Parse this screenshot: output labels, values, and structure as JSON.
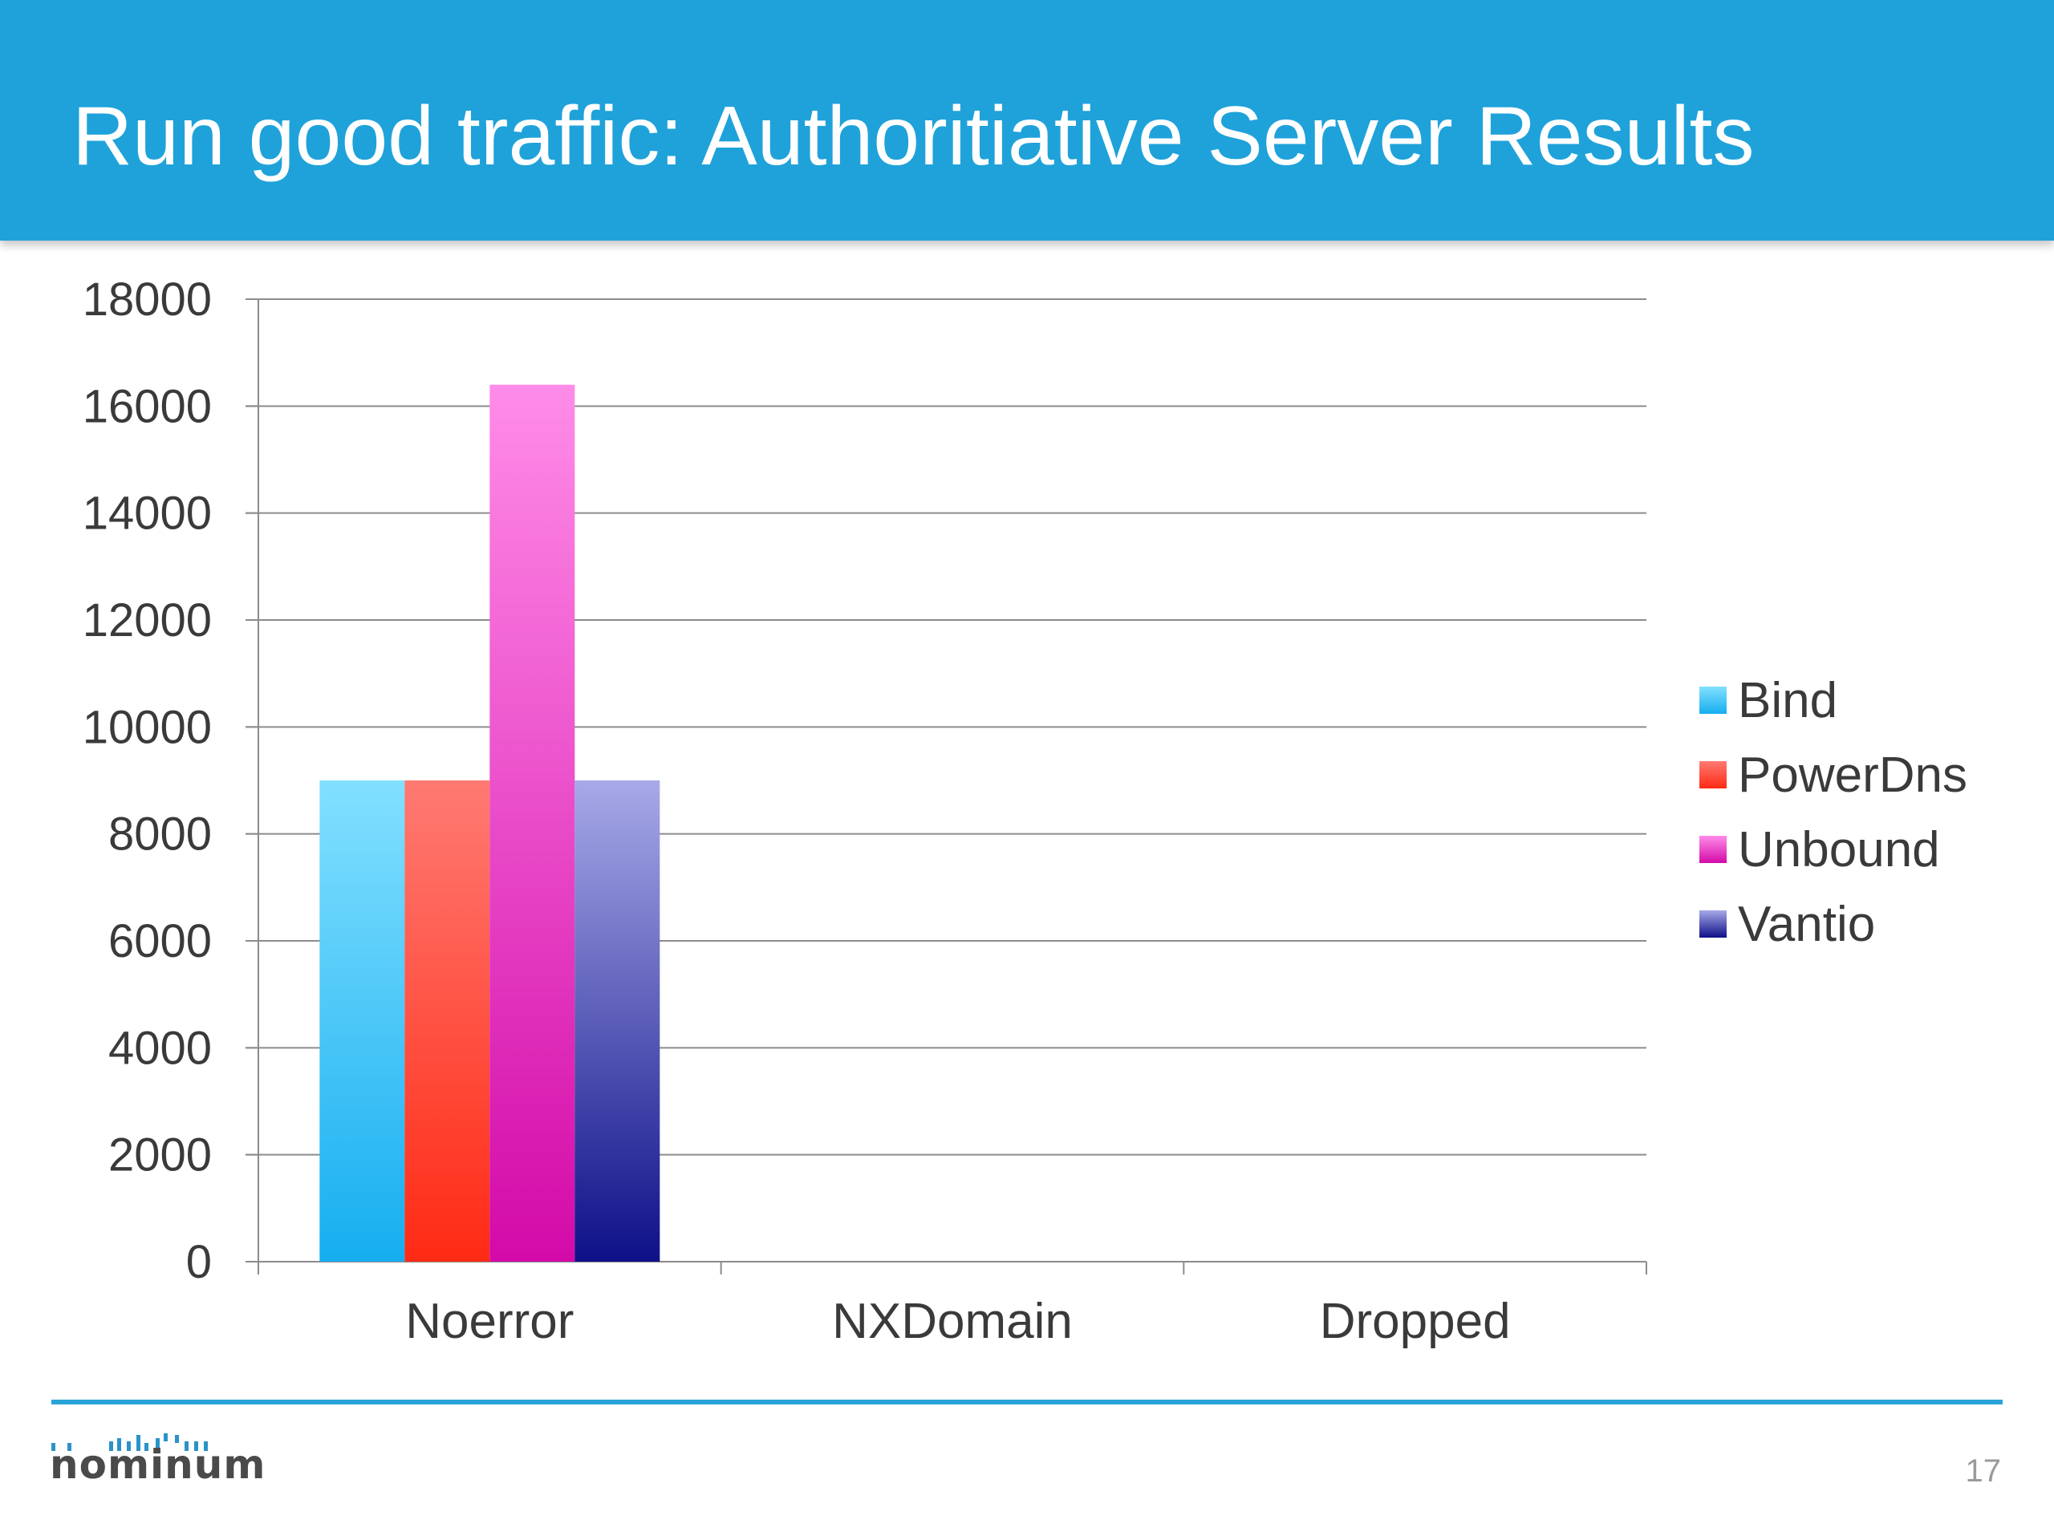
{
  "slide": {
    "title": "Run good traffic: Authoritiative Server Results",
    "page_number": "17",
    "logo_text": "nominum"
  },
  "colors": {
    "header": "#1fa2da",
    "footer_rule": "#2aa3d8"
  },
  "chart_data": {
    "type": "bar",
    "categories": [
      "Noerror",
      "NXDomain",
      "Dropped"
    ],
    "series": [
      {
        "name": "Bind",
        "values": [
          9000,
          0,
          0
        ],
        "color_top": "#82e0ff",
        "color_bottom": "#16aef0"
      },
      {
        "name": "PowerDns",
        "values": [
          9000,
          0,
          0
        ],
        "color_top": "#ff7a72",
        "color_bottom": "#ff2a14"
      },
      {
        "name": "Unbound",
        "values": [
          16400,
          0,
          0
        ],
        "color_top": "#ff8ce8",
        "color_bottom": "#d30aa8"
      },
      {
        "name": "Vantio",
        "values": [
          9000,
          0,
          0
        ],
        "color_top": "#a7a9e8",
        "color_bottom": "#0e1088"
      }
    ],
    "y_ticks": [
      "0",
      "2000",
      "4000",
      "6000",
      "8000",
      "10000",
      "12000",
      "14000",
      "16000",
      "18000"
    ],
    "ylim": [
      0,
      18000
    ],
    "grid": true,
    "legend_position": "right"
  }
}
